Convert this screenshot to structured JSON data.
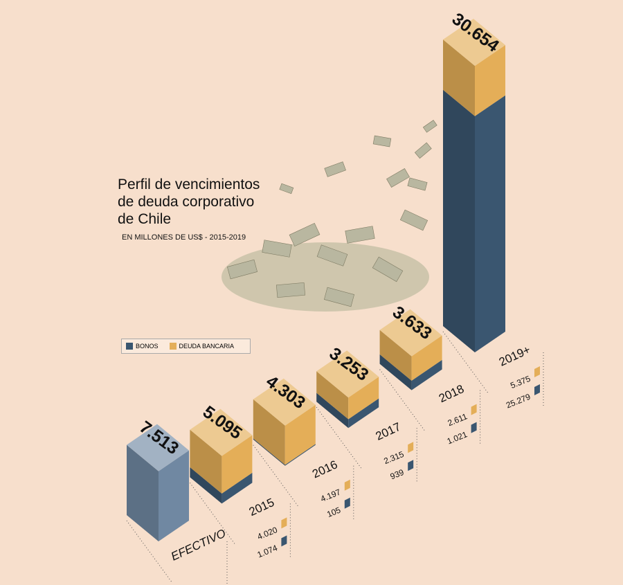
{
  "chart_data": {
    "type": "bar",
    "title": "Perfil de vencimientos de deuda corporativo de Chile",
    "subtitle": "EN MILLONES DE US$ - 2015-2019",
    "categories": [
      "EFECTIVO",
      "2015",
      "2016",
      "2017",
      "2018",
      "2019+"
    ],
    "efectivo_color": "#7088a2",
    "series": [
      {
        "name": "BONOS",
        "color": "#3a5670",
        "values": [
          null,
          1074,
          105,
          939,
          1021,
          25279
        ],
        "value_labels": [
          null,
          "1.074",
          "105",
          "939",
          "1.021",
          "25.279"
        ]
      },
      {
        "name": "DEUDA BANCARIA",
        "color": "#e4ae58",
        "values": [
          null,
          4020,
          4197,
          2315,
          2611,
          5375
        ],
        "value_labels": [
          null,
          "4.020",
          "4.197",
          "2.315",
          "2.611",
          "5.375"
        ]
      }
    ],
    "totals": {
      "values": [
        7513,
        5095,
        4303,
        3253,
        3633,
        30654
      ],
      "value_labels": [
        "7.513",
        "5.095",
        "4.303",
        "3.253",
        "3.633",
        "30.654"
      ]
    }
  }
}
